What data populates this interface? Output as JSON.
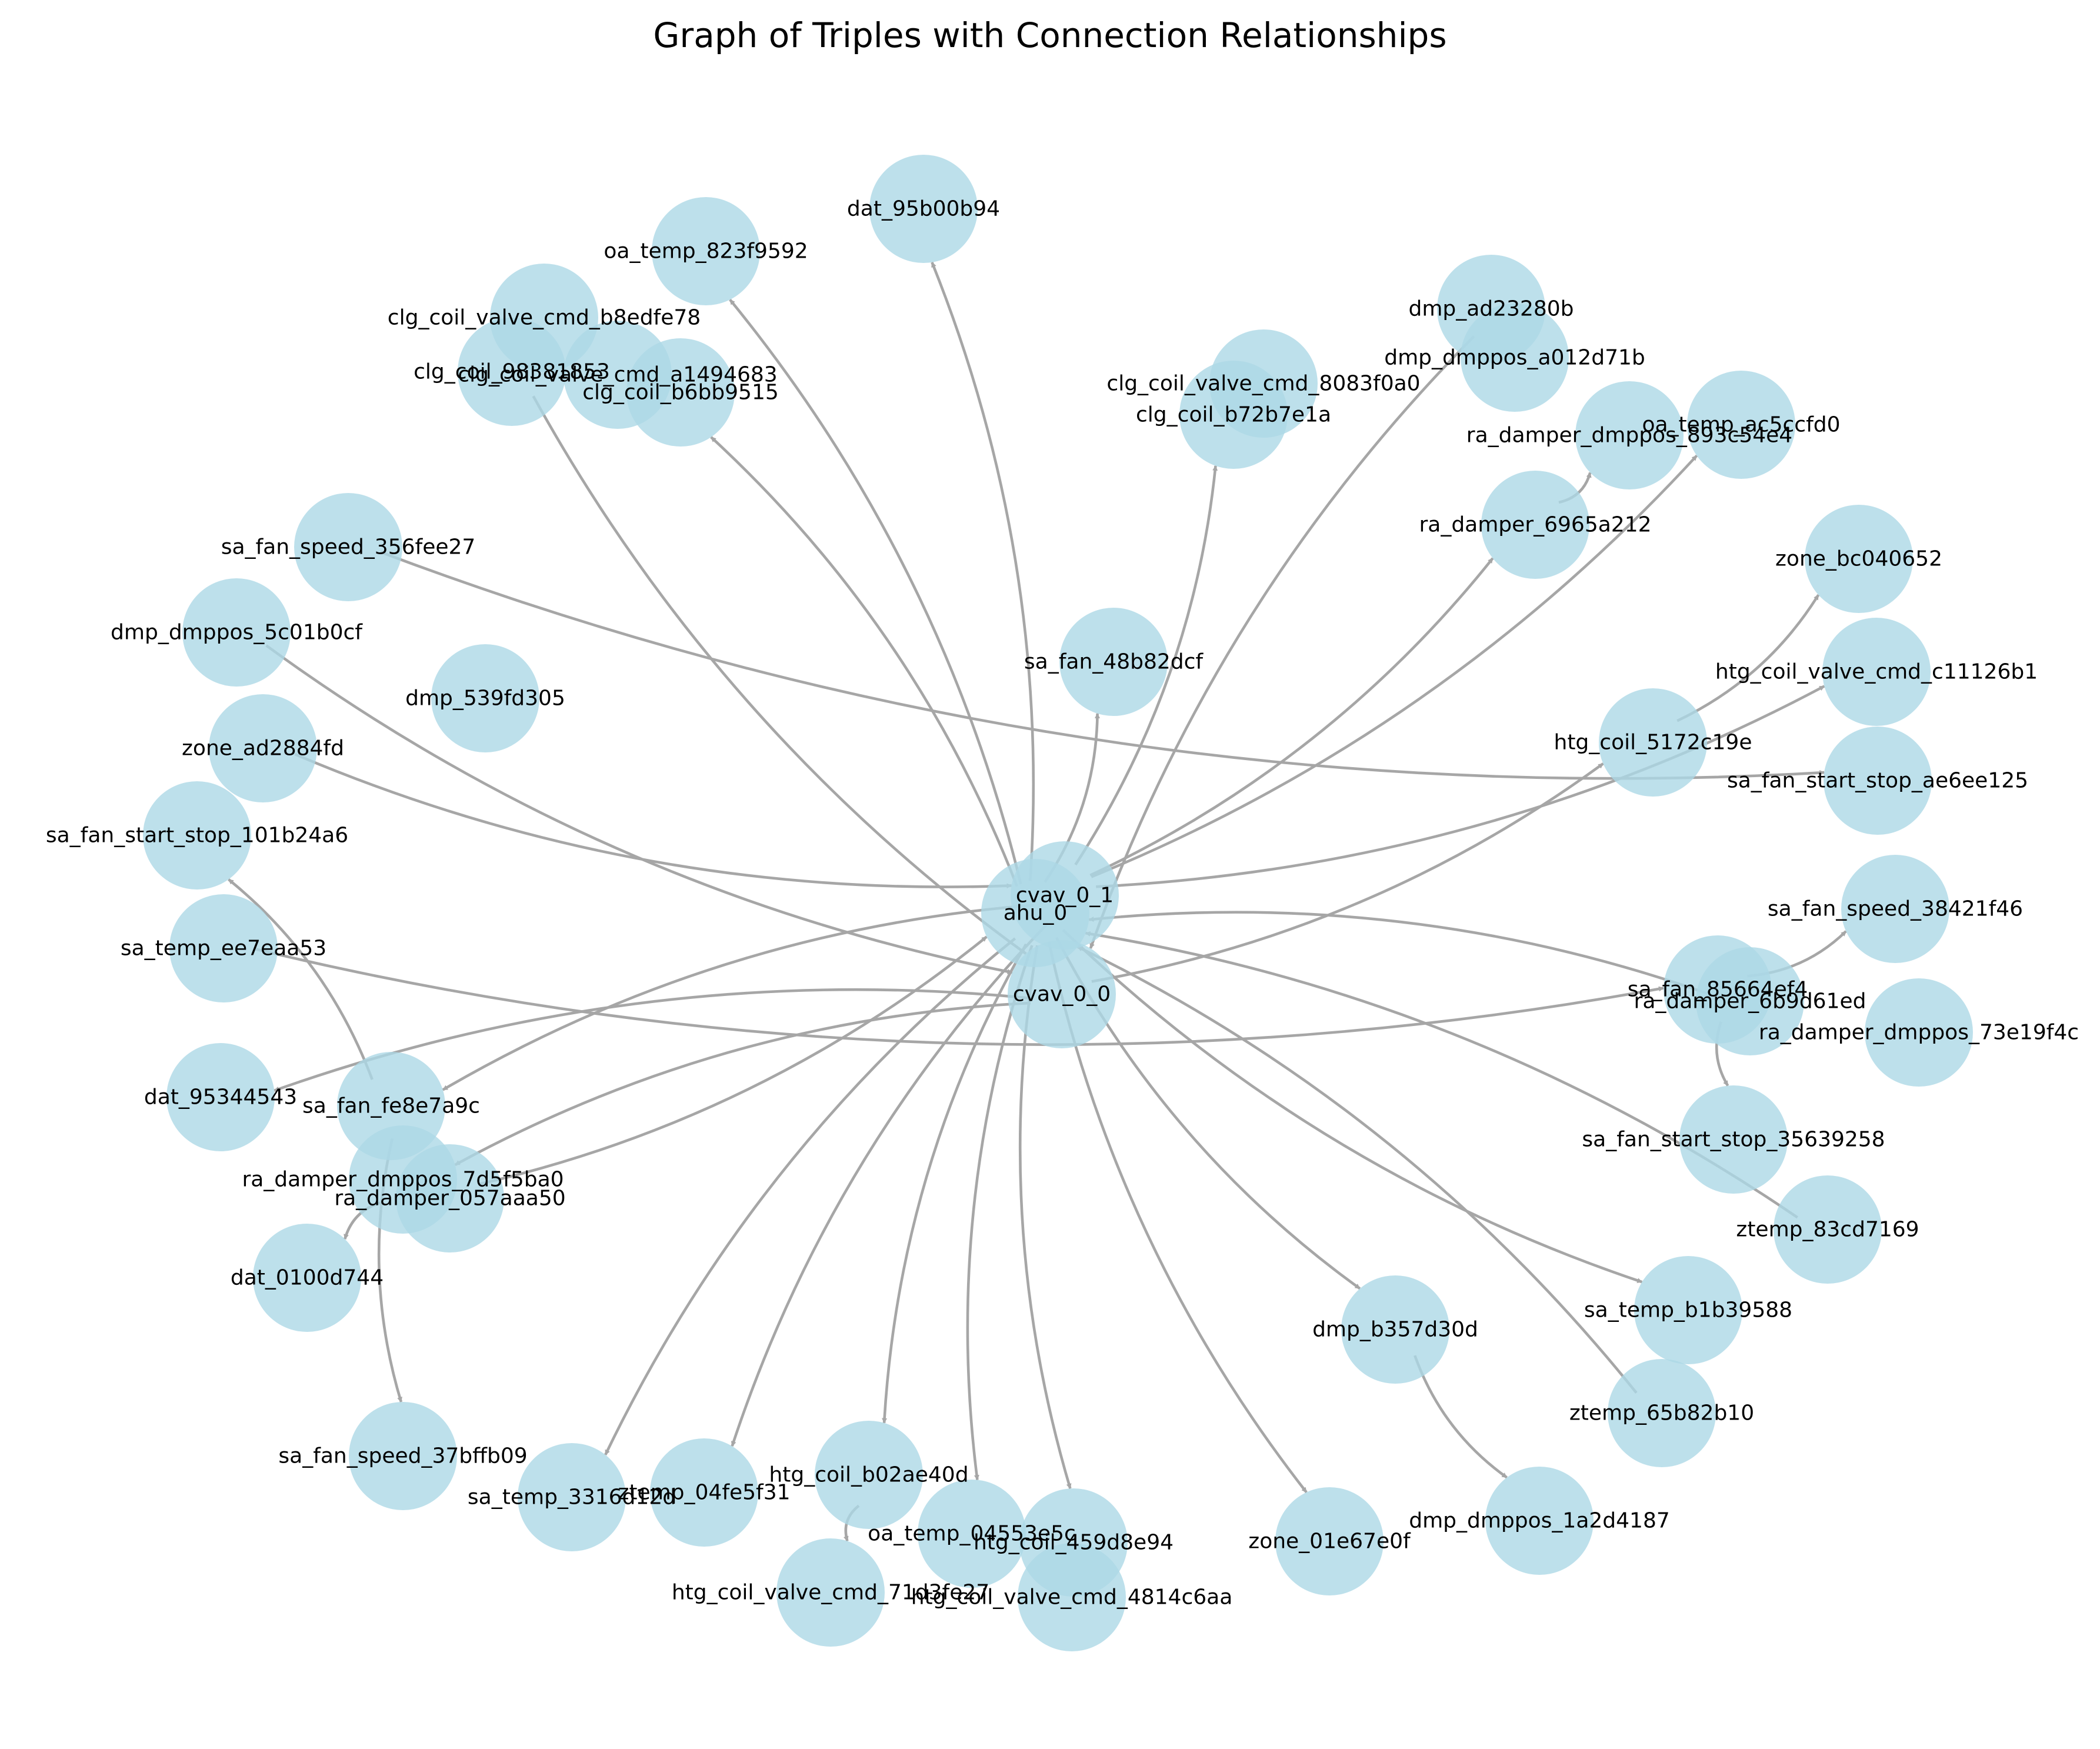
{
  "title": "Graph of Triples with Connection Relationships",
  "colors": {
    "node": "#add8e6",
    "edge": "#a6a6a6",
    "label": "#000000",
    "background": "#ffffff"
  },
  "nodes": [
    {
      "id": "dat_95b00b94"
    },
    {
      "id": "oa_temp_823f9592"
    },
    {
      "id": "clg_coil_valve_cmd_b8edfe78"
    },
    {
      "id": "clg_coil_98381853"
    },
    {
      "id": "clg_coil_valve_cmd_a1494683"
    },
    {
      "id": "clg_coil_b6bb9515"
    },
    {
      "id": "dmp_ad23280b"
    },
    {
      "id": "dmp_dmppos_a012d71b"
    },
    {
      "id": "clg_coil_valve_cmd_8083f0a0"
    },
    {
      "id": "clg_coil_b72b7e1a"
    },
    {
      "id": "ra_damper_dmppos_893c54e4"
    },
    {
      "id": "oa_temp_ac5ccfd0"
    },
    {
      "id": "ra_damper_6965a212"
    },
    {
      "id": "sa_fan_speed_356fee27"
    },
    {
      "id": "zone_bc040652"
    },
    {
      "id": "dmp_dmppos_5c01b0cf"
    },
    {
      "id": "sa_fan_48b82dcf"
    },
    {
      "id": "dmp_539fd305"
    },
    {
      "id": "htg_coil_valve_cmd_c11126b1"
    },
    {
      "id": "zone_ad2884fd"
    },
    {
      "id": "htg_coil_5172c19e"
    },
    {
      "id": "sa_fan_start_stop_ae6ee125"
    },
    {
      "id": "sa_fan_start_stop_101b24a6"
    },
    {
      "id": "cvav_0_1"
    },
    {
      "id": "ahu_0"
    },
    {
      "id": "sa_fan_speed_38421f46"
    },
    {
      "id": "sa_temp_ee7eaa53"
    },
    {
      "id": "cvav_0_0"
    },
    {
      "id": "sa_fan_85664ef4"
    },
    {
      "id": "ra_damper_6b9d61ed"
    },
    {
      "id": "ra_damper_dmppos_73e19f4c"
    },
    {
      "id": "dat_95344543"
    },
    {
      "id": "sa_fan_fe8e7a9c"
    },
    {
      "id": "sa_fan_start_stop_35639258"
    },
    {
      "id": "ra_damper_dmppos_7d5f5ba0"
    },
    {
      "id": "ra_damper_057aaa50"
    },
    {
      "id": "ztemp_83cd7169"
    },
    {
      "id": "dat_0100d744"
    },
    {
      "id": "sa_temp_b1b39588"
    },
    {
      "id": "dmp_b357d30d"
    },
    {
      "id": "ztemp_65b82b10"
    },
    {
      "id": "sa_fan_speed_37bffb09"
    },
    {
      "id": "sa_temp_3316d12d"
    },
    {
      "id": "ztemp_04fe5f31"
    },
    {
      "id": "htg_coil_b02ae40d"
    },
    {
      "id": "dmp_dmppos_1a2d4187"
    },
    {
      "id": "oa_temp_04553e5c"
    },
    {
      "id": "htg_coil_459d8e94"
    },
    {
      "id": "zone_01e67e0f"
    },
    {
      "id": "htg_coil_valve_cmd_71d3fe27"
    },
    {
      "id": "htg_coil_valve_cmd_4814c6aa"
    }
  ],
  "edges": [
    {
      "source": "ahu_0",
      "target": "dat_95b00b94"
    },
    {
      "source": "ahu_0",
      "target": "oa_temp_823f9592"
    },
    {
      "source": "ahu_0",
      "target": "clg_coil_b6bb9515"
    },
    {
      "source": "clg_coil_98381853",
      "target": "cvav_0_0"
    },
    {
      "source": "cvav_0_1",
      "target": "clg_coil_b72b7e1a"
    },
    {
      "source": "dmp_ad23280b",
      "target": "cvav_0_0"
    },
    {
      "source": "ahu_0",
      "target": "sa_fan_48b82dcf"
    },
    {
      "source": "ra_damper_6965a212",
      "target": "ra_damper_dmppos_893c54e4"
    },
    {
      "source": "cvav_0_1",
      "target": "ra_damper_6965a212"
    },
    {
      "source": "cvav_0_1",
      "target": "oa_temp_ac5ccfd0"
    },
    {
      "source": "sa_fan_speed_356fee27",
      "target": "sa_fan_start_stop_ae6ee125"
    },
    {
      "source": "htg_coil_5172c19e",
      "target": "zone_bc040652"
    },
    {
      "source": "dmp_dmppos_5c01b0cf",
      "target": "cvav_0_0"
    },
    {
      "source": "cvav_0_1",
      "target": "htg_coil_valve_cmd_c11126b1"
    },
    {
      "source": "zone_ad2884fd",
      "target": "cvav_0_1"
    },
    {
      "source": "cvav_0_0",
      "target": "htg_coil_5172c19e"
    },
    {
      "source": "sa_fan_fe8e7a9c",
      "target": "sa_fan_start_stop_101b24a6"
    },
    {
      "source": "sa_temp_ee7eaa53",
      "target": "sa_fan_85664ef4"
    },
    {
      "source": "sa_fan_85664ef4",
      "target": "sa_fan_speed_38421f46"
    },
    {
      "source": "ra_damper_6b9d61ed",
      "target": "ahu_0"
    },
    {
      "source": "sa_fan_85664ef4",
      "target": "sa_fan_start_stop_35639258"
    },
    {
      "source": "cvav_0_0",
      "target": "dat_95344543"
    },
    {
      "source": "cvav_0_1",
      "target": "sa_fan_fe8e7a9c"
    },
    {
      "source": "sa_fan_fe8e7a9c",
      "target": "sa_fan_speed_37bffb09"
    },
    {
      "source": "ra_damper_057aaa50",
      "target": "ahu_0"
    },
    {
      "source": "cvav_0_0",
      "target": "ra_damper_dmppos_7d5f5ba0"
    },
    {
      "source": "ra_damper_dmppos_7d5f5ba0",
      "target": "dat_0100d744"
    },
    {
      "source": "ztemp_83cd7169",
      "target": "ahu_0"
    },
    {
      "source": "ahu_0",
      "target": "sa_temp_b1b39588"
    },
    {
      "source": "ahu_0",
      "target": "dmp_b357d30d"
    },
    {
      "source": "dmp_b357d30d",
      "target": "dmp_dmppos_1a2d4187"
    },
    {
      "source": "ztemp_65b82b10",
      "target": "ahu_0"
    },
    {
      "source": "ahu_0",
      "target": "sa_temp_3316d12d"
    },
    {
      "source": "cvav_0_1",
      "target": "ztemp_04fe5f31"
    },
    {
      "source": "ahu_0",
      "target": "htg_coil_b02ae40d"
    },
    {
      "source": "htg_coil_b02ae40d",
      "target": "htg_coil_valve_cmd_71d3fe27"
    },
    {
      "source": "ahu_0",
      "target": "oa_temp_04553e5c"
    },
    {
      "source": "ahu_0",
      "target": "htg_coil_459d8e94"
    },
    {
      "source": "ahu_0",
      "target": "zone_01e67e0f"
    }
  ]
}
